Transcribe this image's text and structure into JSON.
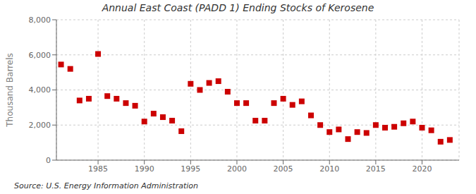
{
  "chart_data": {
    "type": "scatter",
    "title": "Annual East Coast (PADD 1) Ending Stocks of Kerosene",
    "y_label": "Thousand Barrels",
    "annotations": [
      "Source: U.S. Energy Information Administration"
    ],
    "x": [
      1981,
      1982,
      1983,
      1984,
      1985,
      1986,
      1987,
      1988,
      1989,
      1990,
      1991,
      1992,
      1993,
      1994,
      1995,
      1996,
      1997,
      1998,
      1999,
      2000,
      2001,
      2002,
      2003,
      2004,
      2005,
      2006,
      2007,
      2008,
      2009,
      2010,
      2011,
      2012,
      2013,
      2014,
      2015,
      2016,
      2017,
      2018,
      2019,
      2020,
      2021,
      2022,
      2023
    ],
    "values": [
      5450,
      5200,
      3400,
      3500,
      6050,
      3650,
      3500,
      3250,
      3100,
      2200,
      2650,
      2450,
      2250,
      1650,
      4350,
      4000,
      4400,
      4500,
      3900,
      3250,
      3250,
      2250,
      2250,
      3250,
      3500,
      3150,
      3350,
      2550,
      2000,
      1600,
      1750,
      1200,
      1600,
      1550,
      2000,
      1850,
      1900,
      2100,
      2200,
      1850,
      1700,
      1050,
      1150
    ],
    "color": "#cc0000",
    "marker": "square",
    "xlim": [
      1980.5,
      2024
    ],
    "xticks": [
      1985,
      1990,
      1995,
      2000,
      2005,
      2010,
      2015,
      2020
    ],
    "ylim": [
      0,
      8000
    ],
    "yticks": [
      0,
      {
        "value": 2000,
        "label": "2,000"
      },
      {
        "value": 4000,
        "label": "4,000"
      },
      {
        "value": 6000,
        "label": "6,000"
      },
      {
        "value": 8000,
        "label": "8,000"
      }
    ],
    "grid": true
  }
}
